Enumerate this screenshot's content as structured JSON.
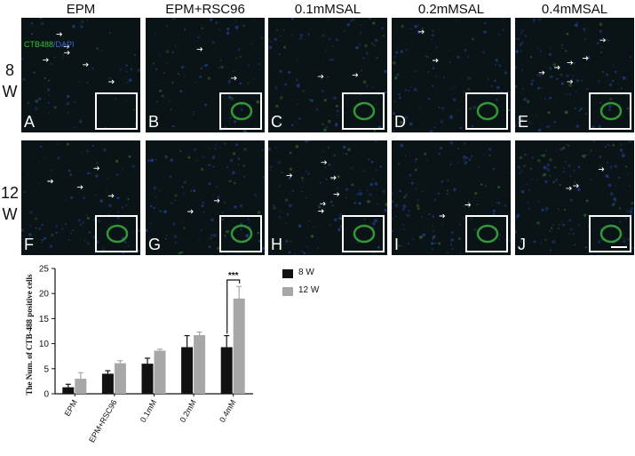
{
  "columns": [
    "EPM",
    "EPM+RSC96",
    "0.1mMSAL",
    "0.2mMSAL",
    "0.4mMSAL"
  ],
  "rows": [
    {
      "label_top": "8",
      "label_bottom": "W"
    },
    {
      "label_top": "12",
      "label_bottom": "W"
    }
  ],
  "stain_labels": {
    "green": "CTB488",
    "separator": "/",
    "blue": "DAPI"
  },
  "panel_letters": [
    "A",
    "B",
    "C",
    "D",
    "E",
    "F",
    "G",
    "H",
    "I",
    "J"
  ],
  "colors": {
    "black_bar": "#111111",
    "grey_bar": "#a7a7a7",
    "green": "#36c03a",
    "blue": "#3d63d8"
  },
  "chart_data": {
    "type": "bar",
    "categories": [
      "EPM",
      "EPM+RSC96",
      "0.1mM",
      "0.2mM",
      "0.4mM"
    ],
    "series": [
      {
        "name": "8 W",
        "values": [
          1.3,
          4.0,
          6.0,
          9.3,
          9.3
        ],
        "errors": [
          0.6,
          0.6,
          1.1,
          2.3,
          2.3
        ]
      },
      {
        "name": "12 W",
        "values": [
          3.0,
          6.1,
          8.6,
          11.7,
          19.0
        ],
        "errors": [
          1.2,
          0.5,
          0.3,
          0.6,
          2.4
        ]
      }
    ],
    "ylabel": "The Num. of CTB-488 positive cells",
    "xlabel": "",
    "ylim": [
      0,
      25
    ],
    "yticks": [
      0,
      5,
      10,
      15,
      20,
      25
    ],
    "significance": {
      "category": "0.4mM",
      "label": "***"
    },
    "legend_placement": "right"
  }
}
